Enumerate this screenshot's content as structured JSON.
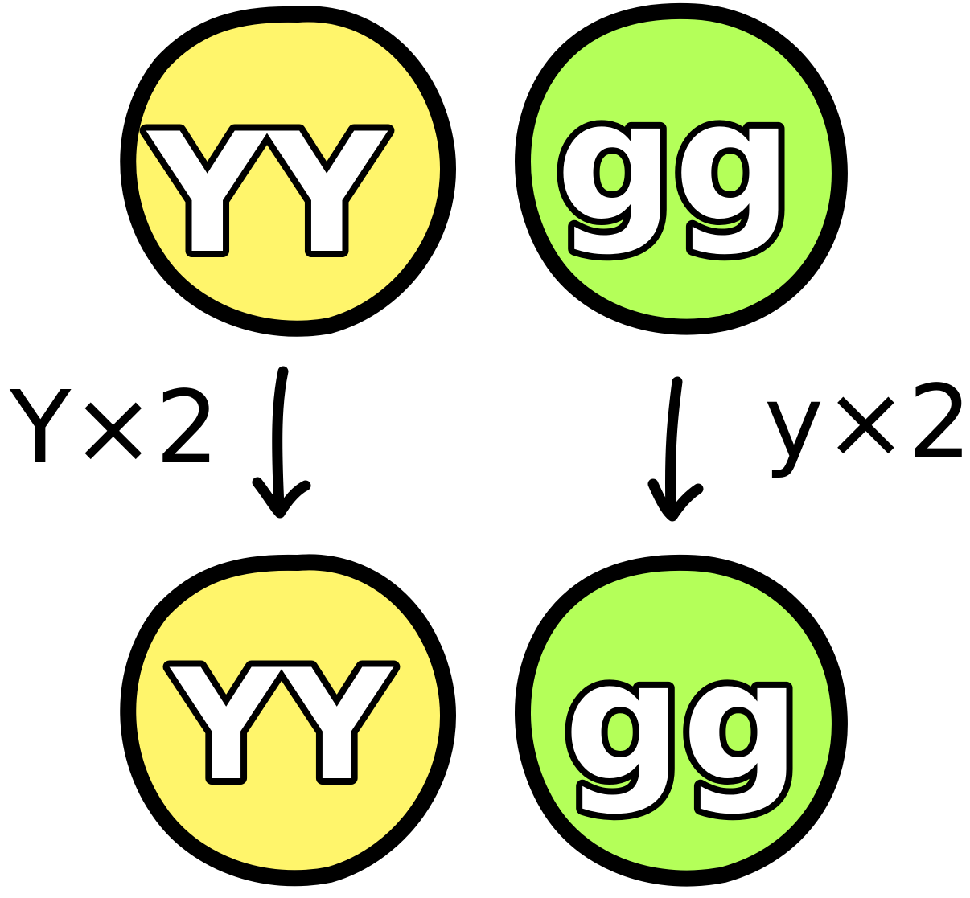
{
  "colors": {
    "yellow_cell": "#fff56b",
    "green_cell": "#b4ff59",
    "outline": "#000000",
    "letter_fill": "#ffffff"
  },
  "cells": {
    "parent_yellow": {
      "genotype": "YY",
      "color": "yellow_cell"
    },
    "parent_green": {
      "genotype": "gg",
      "color": "green_cell"
    },
    "gamete_yellow": {
      "genotype": "YY",
      "color": "yellow_cell"
    },
    "gamete_green": {
      "genotype": "gg",
      "color": "green_cell"
    }
  },
  "arrows": {
    "left": {
      "label": "Y×2",
      "direction": "down"
    },
    "right": {
      "label": "y×2",
      "direction": "down"
    }
  }
}
